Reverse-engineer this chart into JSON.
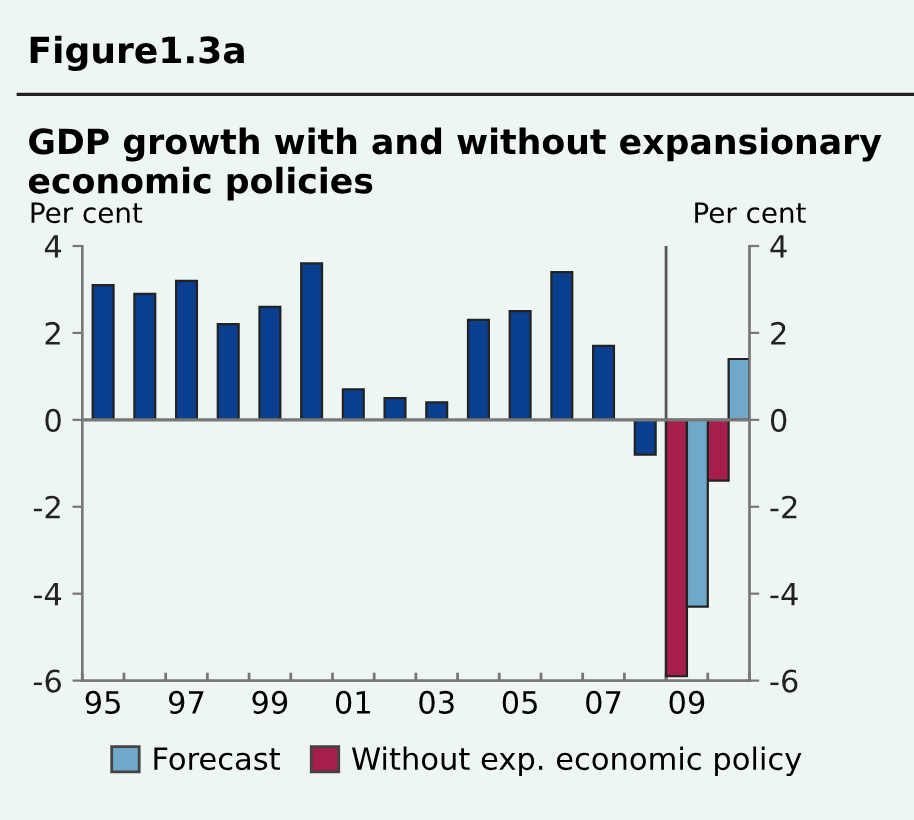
{
  "chart_data": {
    "type": "bar",
    "title": "Figure1.3a",
    "subtitle": "GDP growth with and without expansionary economic policies",
    "ylabel": "Per cent",
    "y2label": "Per cent",
    "categories": [
      "95",
      null,
      "97",
      null,
      "99",
      null,
      "01",
      null,
      "03",
      null,
      "05",
      null,
      "07",
      null,
      "09",
      null
    ],
    "series": [
      {
        "color": "#0a3f8f",
        "values": [
          3.1,
          2.9,
          3.2,
          2.2,
          2.6,
          3.6,
          0.7,
          0.5,
          0.4,
          2.3,
          2.5,
          3.4,
          1.7,
          -0.8,
          null,
          null
        ]
      },
      {
        "name": "Without exp. economic policy",
        "color": "#a61e4d",
        "values": [
          null,
          null,
          null,
          null,
          null,
          null,
          null,
          null,
          null,
          null,
          null,
          null,
          null,
          null,
          -5.9,
          -1.4
        ]
      },
      {
        "name": "Forecast",
        "color": "#6fa8c8",
        "values": [
          null,
          null,
          null,
          null,
          null,
          null,
          null,
          null,
          null,
          null,
          null,
          null,
          null,
          null,
          -4.3,
          1.4
        ]
      }
    ],
    "ylim": [
      -6,
      4
    ],
    "yticks": [
      -6,
      -4,
      -2,
      0,
      2,
      4
    ],
    "y2lim": [
      -6,
      4
    ],
    "y2ticks": [
      -6,
      -4,
      -2,
      0,
      2,
      4
    ],
    "ref_lines": [
      {
        "axis": "x",
        "value": "09",
        "color": "#555555"
      }
    ],
    "legend": "bottom",
    "grid": false
  }
}
